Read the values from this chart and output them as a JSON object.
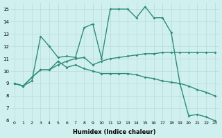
{
  "line1_x": [
    0,
    1,
    2,
    3,
    4,
    5,
    6,
    7,
    8,
    9,
    10,
    11,
    12,
    13,
    14,
    15,
    16,
    17,
    18,
    19,
    20,
    21,
    22,
    23
  ],
  "line1_y": [
    9.0,
    8.8,
    9.2,
    12.8,
    12.0,
    11.1,
    11.2,
    11.1,
    13.5,
    13.8,
    11.0,
    15.0,
    15.0,
    15.0,
    14.3,
    15.2,
    14.3,
    14.3,
    13.1,
    9.0,
    6.4,
    6.5,
    6.3,
    6.0
  ],
  "line2_x": [
    0,
    1,
    2,
    3,
    4,
    5,
    6,
    7,
    8,
    9,
    10,
    11,
    12,
    13,
    14,
    15,
    16,
    17,
    18,
    19,
    20,
    21,
    22,
    23
  ],
  "line2_y": [
    9.0,
    8.8,
    9.5,
    10.1,
    10.1,
    10.5,
    10.8,
    11.0,
    11.1,
    10.5,
    10.8,
    11.0,
    11.1,
    11.2,
    11.3,
    11.4,
    11.4,
    11.5,
    11.5,
    11.5,
    11.5,
    11.5,
    11.5,
    11.5
  ],
  "line3_x": [
    0,
    1,
    2,
    3,
    4,
    5,
    6,
    7,
    8,
    9,
    10,
    11,
    12,
    13,
    14,
    15,
    16,
    17,
    18,
    19,
    20,
    21,
    22,
    23
  ],
  "line3_y": [
    9.0,
    8.8,
    9.5,
    10.1,
    10.1,
    10.8,
    10.3,
    10.5,
    10.2,
    10.0,
    9.8,
    9.8,
    9.8,
    9.8,
    9.7,
    9.5,
    9.4,
    9.2,
    9.1,
    9.0,
    8.8,
    8.5,
    8.3,
    8.0
  ],
  "color": "#2e8b7a",
  "bg_color": "#d0f0f0",
  "grid_color": "#b8dada",
  "xlabel": "Humidex (Indice chaleur)",
  "ylim": [
    6,
    15.5
  ],
  "xlim": [
    -0.5,
    23.5
  ],
  "yticks": [
    6,
    7,
    8,
    9,
    10,
    11,
    12,
    13,
    14,
    15
  ],
  "xticks": [
    0,
    1,
    2,
    3,
    4,
    5,
    6,
    7,
    8,
    9,
    10,
    11,
    12,
    13,
    14,
    15,
    16,
    17,
    18,
    19,
    20,
    21,
    22,
    23
  ],
  "marker": "D",
  "markersize": 2.0,
  "linewidth": 1.0
}
